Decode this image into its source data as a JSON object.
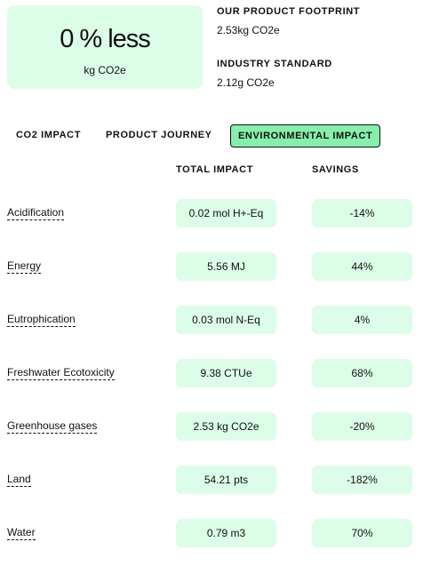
{
  "hero": {
    "value": "0 % less",
    "unit": "kg CO2e"
  },
  "footprint": {
    "product_label": "OUR PRODUCT FOOTPRINT",
    "product_value": "2.53kg CO2e",
    "industry_label": "INDUSTRY STANDARD",
    "industry_value": "2.12g CO2e"
  },
  "tabs": [
    {
      "label": "CO2 IMPACT",
      "active": false
    },
    {
      "label": "PRODUCT JOURNEY",
      "active": false
    },
    {
      "label": "ENVIRONMENTAL IMPACT",
      "active": true
    }
  ],
  "table": {
    "headers": {
      "total": "TOTAL IMPACT",
      "savings": "SAVINGS"
    },
    "rows": [
      {
        "label": "Acidification",
        "total": "0.02 mol H+-Eq",
        "savings": "-14%"
      },
      {
        "label": "Energy",
        "total": "5.56 MJ",
        "savings": "44%"
      },
      {
        "label": "Eutrophication",
        "total": "0.03 mol N-Eq",
        "savings": "4%"
      },
      {
        "label": "Freshwater Ecotoxicity",
        "total": "9.38 CTUe",
        "savings": "68%"
      },
      {
        "label": "Greenhouse gases",
        "total": "2.53 kg CO2e",
        "savings": "-20%"
      },
      {
        "label": "Land",
        "total": "54.21 pts",
        "savings": "-182%"
      },
      {
        "label": "Water",
        "total": "0.79 m3",
        "savings": "70%"
      }
    ]
  },
  "colors": {
    "accent_light": "#dcfde7",
    "accent_active": "#86efac",
    "text": "#111111"
  }
}
